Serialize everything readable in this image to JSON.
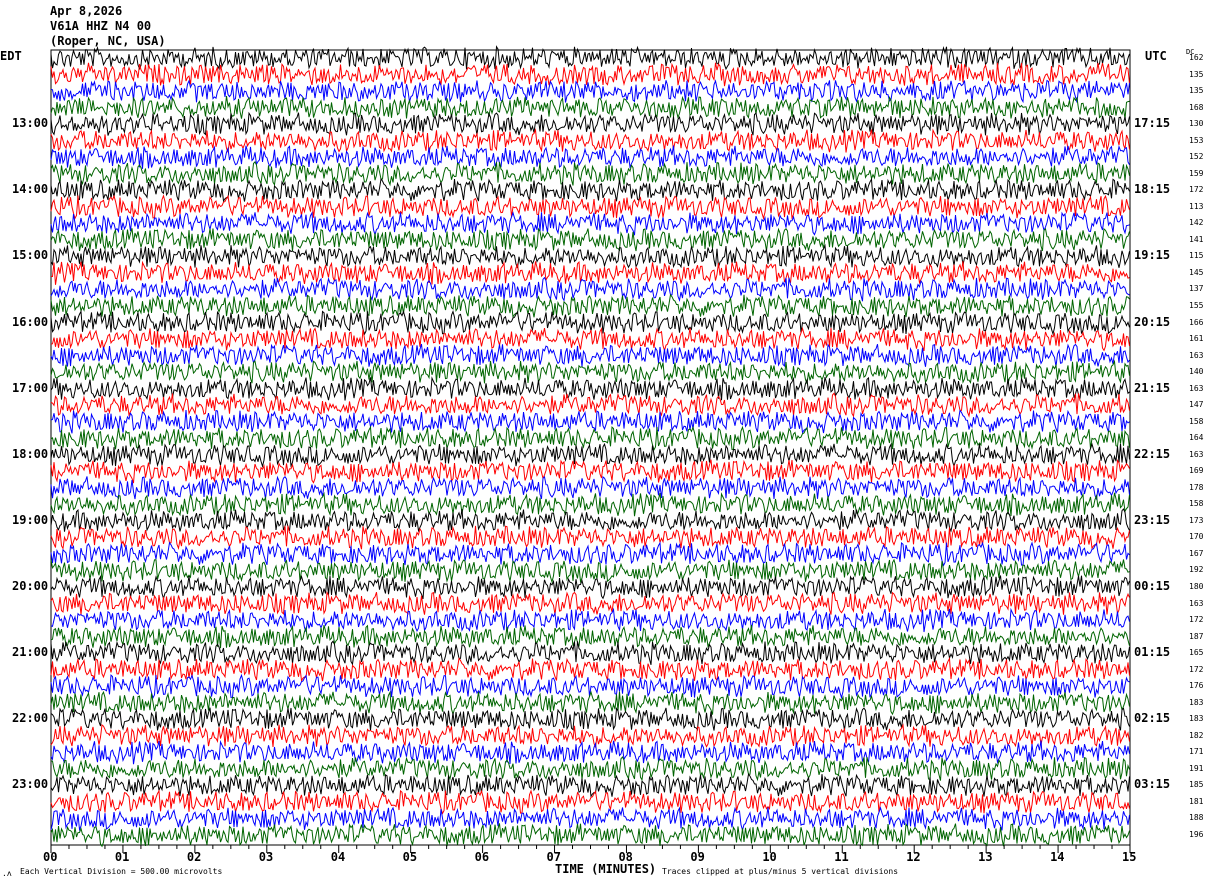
{
  "header": {
    "date": "Apr 8,2026",
    "station": "V61A HHZ N4 00",
    "location": "(Roper, NC, USA)"
  },
  "left_axis_title": "EDT",
  "right_axis_title": "UTC",
  "dc_title": "DC",
  "footer": {
    "scale_note": "Each Vertical Division =  500.00 microvolts",
    "xlabel": "TIME (MINUTES)",
    "clip_note": "Traces clipped at plus/minus 5 vertical divisions"
  },
  "chart_data": {
    "type": "line",
    "subtype": "helicorder",
    "xlabel": "TIME (MINUTES)",
    "xlim": [
      0,
      15
    ],
    "x_ticks": [
      "00",
      "01",
      "02",
      "03",
      "04",
      "05",
      "06",
      "07",
      "08",
      "09",
      "10",
      "11",
      "12",
      "13",
      "14",
      "15"
    ],
    "trace_colors": [
      "#000000",
      "#ff0000",
      "#0000ff",
      "#006400"
    ],
    "left_labels": [
      "13:00",
      "14:00",
      "15:00",
      "16:00",
      "17:00",
      "18:00",
      "19:00",
      "20:00",
      "21:00",
      "22:00",
      "23:00"
    ],
    "right_labels": [
      "17:15",
      "18:15",
      "19:15",
      "20:15",
      "21:15",
      "22:15",
      "23:15",
      "00:15",
      "01:15",
      "02:15",
      "03:15"
    ],
    "dc_offsets": [
      162,
      135,
      135,
      168,
      130,
      153,
      152,
      159,
      172,
      113,
      142,
      141,
      115,
      145,
      137,
      155,
      166,
      161,
      163,
      140,
      163,
      147,
      158,
      164,
      163,
      169,
      178,
      158,
      173,
      170,
      167,
      192,
      180,
      163,
      172,
      187,
      165,
      172,
      176,
      183,
      183,
      182,
      171,
      191,
      185,
      181,
      188,
      196
    ]
  }
}
